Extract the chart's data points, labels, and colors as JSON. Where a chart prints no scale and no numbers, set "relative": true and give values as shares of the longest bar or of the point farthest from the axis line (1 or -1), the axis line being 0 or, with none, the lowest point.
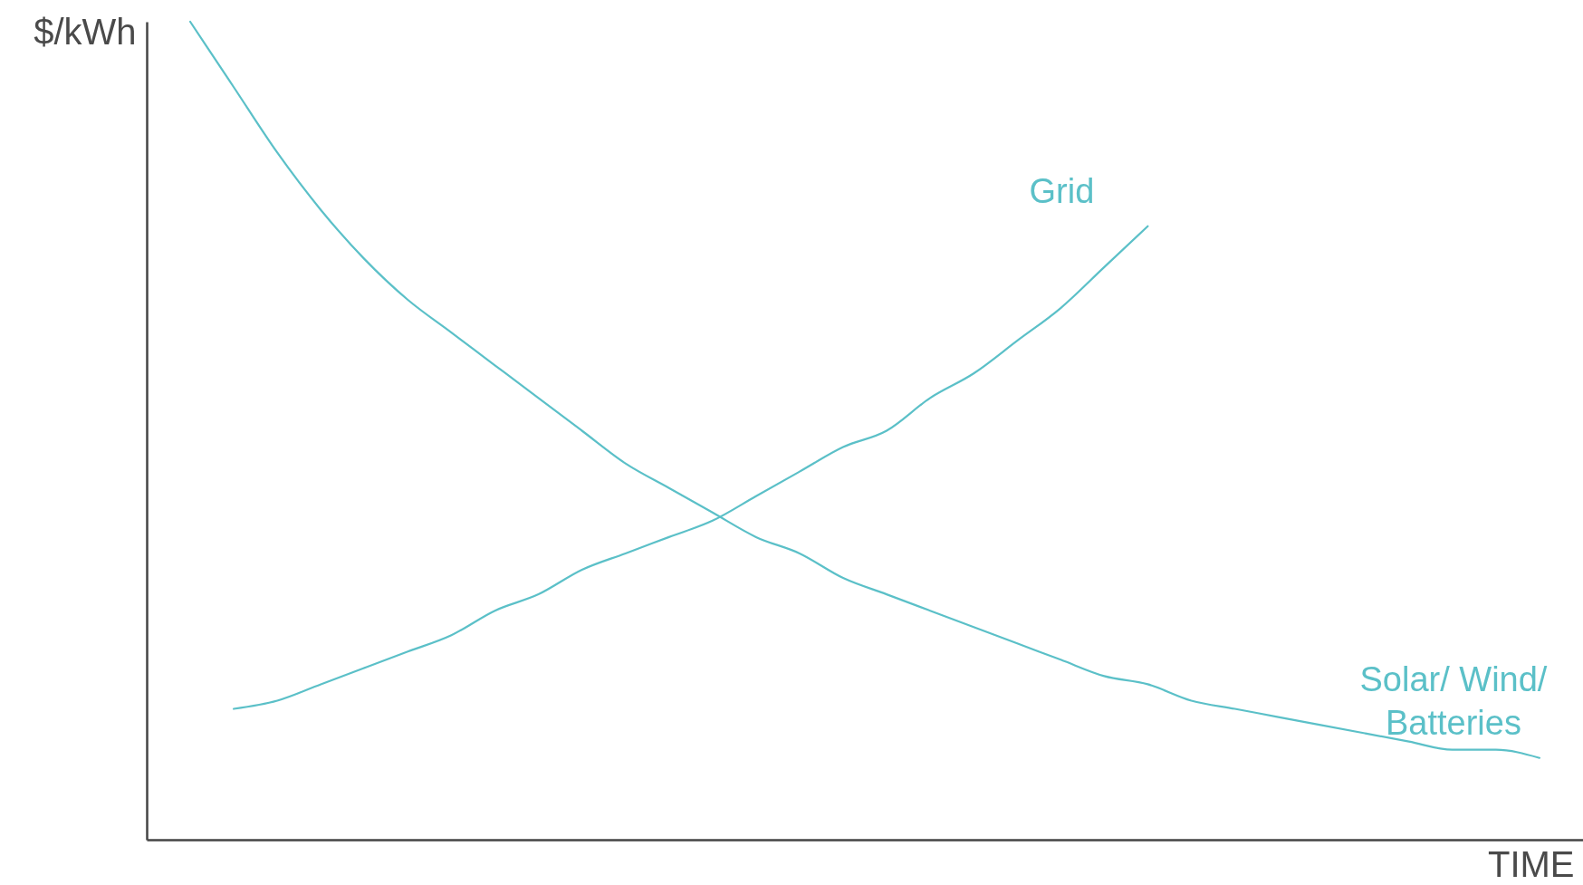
{
  "chart_data": {
    "type": "line",
    "xlabel": "TIME",
    "ylabel": "$/kWh",
    "relative": true,
    "legend": false,
    "grid": false,
    "categories": [
      null,
      null,
      null,
      null,
      null,
      null,
      null,
      null,
      null,
      null,
      null,
      null,
      null,
      null,
      null,
      null,
      null,
      null,
      null,
      null,
      null,
      null,
      null,
      null,
      null,
      null,
      null,
      null,
      null,
      null,
      null,
      null
    ],
    "series": [
      {
        "name": "Solar/ Wind/ Batteries",
        "color": "#5bc0c8",
        "values": [
          1.0,
          0.92,
          0.84,
          0.77,
          0.71,
          0.66,
          0.62,
          0.58,
          0.54,
          0.5,
          0.46,
          0.43,
          0.4,
          0.37,
          0.35,
          0.32,
          0.3,
          0.28,
          0.26,
          0.24,
          0.22,
          0.2,
          0.19,
          0.17,
          0.16,
          0.15,
          0.14,
          0.13,
          0.12,
          0.11,
          0.11,
          0.1
        ]
      },
      {
        "name": "Grid",
        "color": "#5bc0c8",
        "values": [
          null,
          0.16,
          0.17,
          0.19,
          0.21,
          0.23,
          0.25,
          0.28,
          0.3,
          0.33,
          0.35,
          0.37,
          0.39,
          0.42,
          0.45,
          0.48,
          0.5,
          0.54,
          0.57,
          0.61,
          0.65,
          0.7,
          0.75,
          null,
          null,
          null,
          null,
          null,
          null,
          null,
          null,
          null
        ]
      }
    ]
  }
}
